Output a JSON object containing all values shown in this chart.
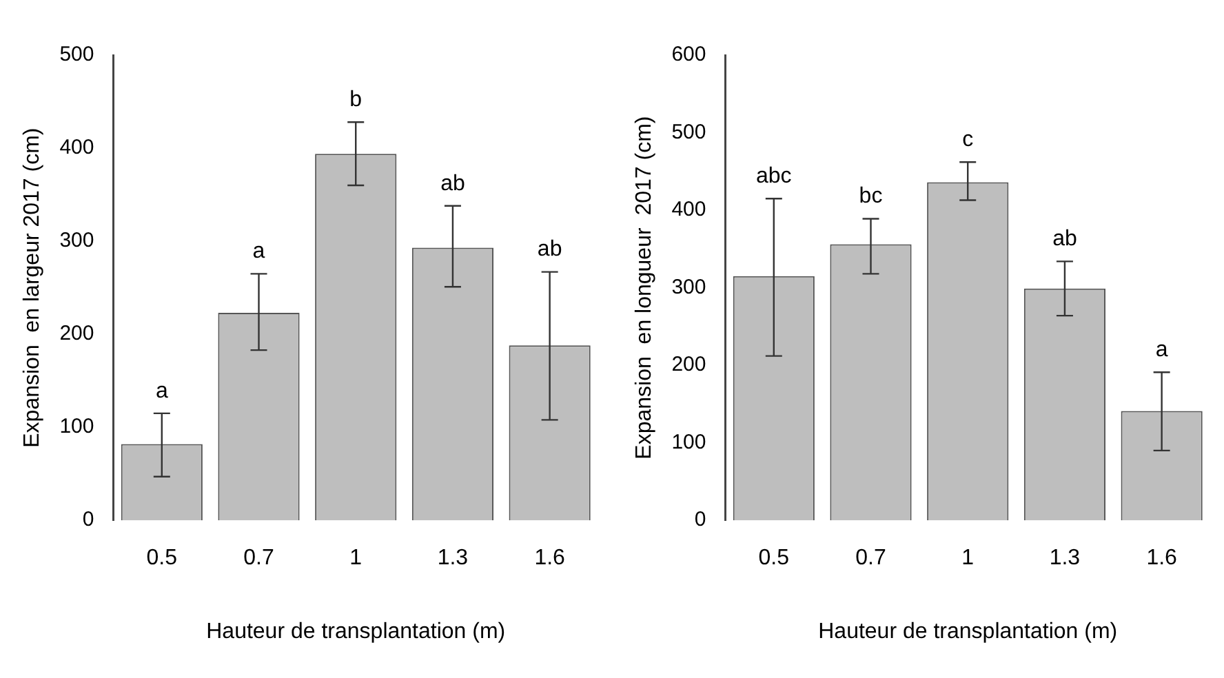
{
  "chart_data": [
    {
      "type": "bar",
      "xlabel": "Hauteur de transplantation (m)",
      "ylabel": "Expansion  en largeur 2017 (cm)",
      "categories": [
        "0.5",
        "0.7",
        "1",
        "1.3",
        "1.6"
      ],
      "values": [
        82,
        223,
        394,
        293,
        188
      ],
      "color": "#bebebe",
      "errors": [
        [
          47,
          115
        ],
        [
          183,
          265
        ],
        [
          360,
          428
        ],
        [
          251,
          338
        ],
        [
          108,
          267
        ]
      ],
      "ylim": [
        0,
        500
      ],
      "yticks": [
        0,
        100,
        200,
        300,
        400,
        500
      ],
      "grid": false,
      "legend": false,
      "annotations": [
        {
          "text": "a",
          "x": "0.5",
          "y": 115
        },
        {
          "text": "a",
          "x": "0.7",
          "y": 265
        },
        {
          "text": "b",
          "x": "1",
          "y": 428
        },
        {
          "text": "ab",
          "x": "1.3",
          "y": 338
        },
        {
          "text": "ab",
          "x": "1.6",
          "y": 267
        }
      ]
    },
    {
      "type": "bar",
      "xlabel": "Hauteur de transplantation (m)",
      "ylabel": "Expansion  en longueur  2017 (cm)",
      "categories": [
        "0.5",
        "0.7",
        "1",
        "1.3",
        "1.6"
      ],
      "values": [
        315,
        356,
        436,
        299,
        141
      ],
      "color": "#bebebe",
      "errors": [
        [
          212,
          415
        ],
        [
          318,
          389
        ],
        [
          413,
          462
        ],
        [
          264,
          334
        ],
        [
          90,
          191
        ]
      ],
      "ylim": [
        0,
        600
      ],
      "yticks": [
        0,
        100,
        200,
        300,
        400,
        500,
        600
      ],
      "grid": false,
      "legend": false,
      "annotations": [
        {
          "text": "abc",
          "x": "0.5",
          "y": 415
        },
        {
          "text": "bc",
          "x": "0.7",
          "y": 389
        },
        {
          "text": "c",
          "x": "1",
          "y": 462
        },
        {
          "text": "ab",
          "x": "1.3",
          "y": 334
        },
        {
          "text": "a",
          "x": "1.6",
          "y": 191
        }
      ]
    }
  ]
}
